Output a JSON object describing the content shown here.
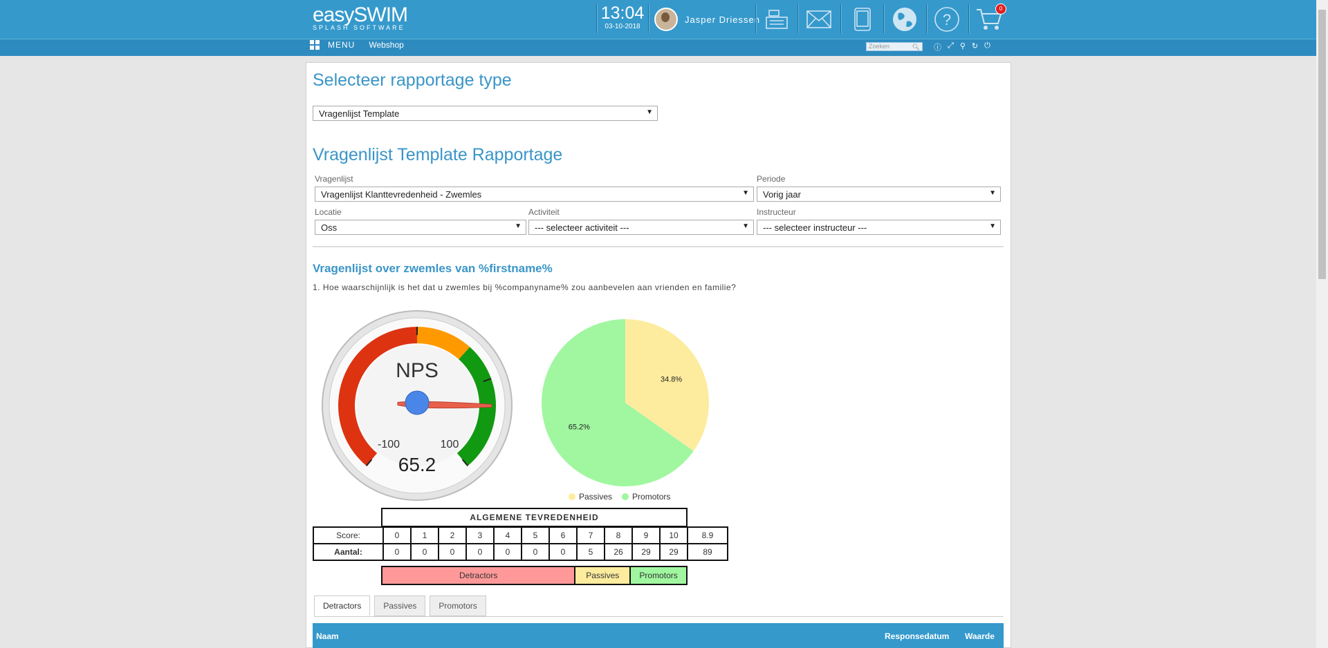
{
  "header": {
    "logo_main": "easySWIM",
    "logo_sub": "SPLASH SOFTWARE",
    "time": "13:04",
    "date": "03-10-2018",
    "user_name": "Jasper Driessen",
    "cart_count": "0"
  },
  "subnav": {
    "menu_label": "MENU",
    "webshop_label": "Webshop",
    "search_placeholder": "Zoeken"
  },
  "report_type": {
    "title": "Selecteer rapportage type",
    "selected": "Vragenlijst Template"
  },
  "report": {
    "title": "Vragenlijst Template Rapportage",
    "vragenlijst_label": "Vragenlijst",
    "vragenlijst_value": "Vragenlijst Klanttevredenheid - Zwemles",
    "periode_label": "Periode",
    "periode_value": "Vorig jaar",
    "locatie_label": "Locatie",
    "locatie_value": "Oss",
    "activiteit_label": "Activiteit",
    "activiteit_value": "--- selecteer activiteit ---",
    "instructeur_label": "Instructeur",
    "instructeur_value": "--- selecteer instructeur ---"
  },
  "survey": {
    "title": "Vragenlijst over zwemles van %firstname%",
    "question": "1. Hoe waarschijnlijk is het dat u zwemles bij %companyname% zou aanbevelen aan vrienden en familie?"
  },
  "gauge": {
    "label": "NPS",
    "min_label": "-100",
    "max_label": "100",
    "value": 65.2,
    "value_text": "65.2",
    "colors": {
      "red": "#dd3311",
      "orange": "#ff9900",
      "green": "#119911"
    }
  },
  "chart_data": {
    "type": "pie",
    "slices": [
      {
        "label": "Passives",
        "value": 34.8,
        "value_text": "34.8%",
        "color": "#fdec9e"
      },
      {
        "label": "Promotors",
        "value": 65.2,
        "value_text": "65.2%",
        "color": "#a0f7a0"
      }
    ]
  },
  "nps_table": {
    "title": "ALGEMENE TEVREDENHEID",
    "score_label": "Score:",
    "count_label": "Aantal:",
    "scores": [
      "0",
      "1",
      "2",
      "3",
      "4",
      "5",
      "6",
      "7",
      "8",
      "9",
      "10",
      "8.9"
    ],
    "counts": [
      "0",
      "0",
      "0",
      "0",
      "0",
      "0",
      "0",
      "5",
      "26",
      "29",
      "29",
      "89"
    ],
    "detractors_label": "Detractors",
    "passives_label": "Passives",
    "promotors_label": "Promotors",
    "colors": {
      "detractors": "#ff9999",
      "passives": "#fdec9e",
      "promotors": "#a0f7a0"
    }
  },
  "tabs": [
    {
      "label": "Detractors"
    },
    {
      "label": "Passives"
    },
    {
      "label": "Promotors"
    }
  ],
  "results_table": {
    "col_name": "Naam",
    "col_date": "Responsedatum",
    "col_value": "Waarde"
  }
}
